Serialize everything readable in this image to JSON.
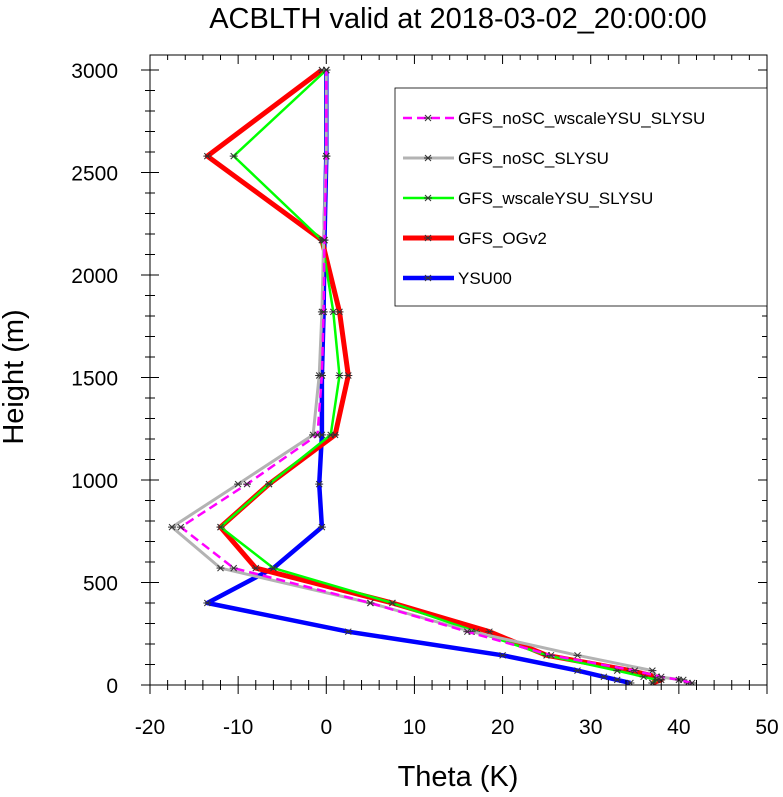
{
  "chart_data": {
    "type": "line",
    "title": "ACBLTH valid at 2018-03-02_20:00:00",
    "xlabel": "Theta (K)",
    "ylabel": "Height (m)",
    "xlim": [
      -20,
      50
    ],
    "ylim": [
      0,
      3000
    ],
    "xticks": [
      -20,
      -10,
      0,
      10,
      20,
      30,
      40,
      50
    ],
    "yticks": [
      0,
      500,
      1000,
      1500,
      2000,
      2500,
      3000
    ],
    "xtick_labels": [
      "-20",
      "-10",
      "0",
      "10",
      "20",
      "30",
      "40",
      "50"
    ],
    "ytick_labels": [
      "0",
      "500",
      "1000",
      "1500",
      "2000",
      "2500",
      "3000"
    ],
    "grid": false,
    "legend_position": "top-right",
    "marker": "asterisk",
    "heights": [
      10,
      25,
      40,
      70,
      145,
      260,
      400,
      570,
      770,
      980,
      1220,
      1510,
      1820,
      2170,
      2580,
      3000
    ],
    "series": [
      {
        "name": "GFS_noSC_wscaleYSU_SLYSU",
        "color": "#ff00ff",
        "dashed": true,
        "theta": [
          41.5,
          40.0,
          38.0,
          35.0,
          25.5,
          16.0,
          5.0,
          -10.5,
          -16.5,
          -9.0,
          -1.0,
          -0.5,
          -0.3,
          -0.2,
          0.0,
          0.0
        ]
      },
      {
        "name": "GFS_noSC_SLYSU",
        "color": "#b3b3b3",
        "dashed": false,
        "theta": [
          41.0,
          40.5,
          37.5,
          37.0,
          28.5,
          16.5,
          5.0,
          -12.0,
          -17.5,
          -10.0,
          -1.5,
          -0.8,
          -0.5,
          -0.3,
          0.0,
          0.0
        ]
      },
      {
        "name": "GFS_wscaleYSU_SLYSU",
        "color": "#00ff00",
        "dashed": false,
        "theta": [
          37.0,
          37.5,
          36.0,
          33.0,
          25.0,
          17.0,
          7.5,
          -6.0,
          -12.0,
          -6.5,
          0.5,
          1.5,
          0.8,
          -0.5,
          -10.5,
          0.0
        ]
      },
      {
        "name": "GFS_OGv2",
        "color": "#ff0000",
        "dashed": false,
        "theta": [
          37.0,
          38.0,
          37.5,
          34.5,
          25.0,
          18.5,
          7.5,
          -8.0,
          -12.0,
          -6.5,
          1.0,
          2.5,
          1.5,
          -0.5,
          -13.5,
          -0.5
        ]
      },
      {
        "name": "YSU00",
        "color": "#0000ff",
        "dashed": false,
        "theta": [
          34.5,
          33.0,
          31.5,
          28.5,
          20.0,
          2.5,
          -13.5,
          -6.0,
          -0.5,
          -0.8,
          -0.5,
          -0.5,
          -0.3,
          -0.2,
          0.0,
          0.0
        ]
      }
    ]
  }
}
